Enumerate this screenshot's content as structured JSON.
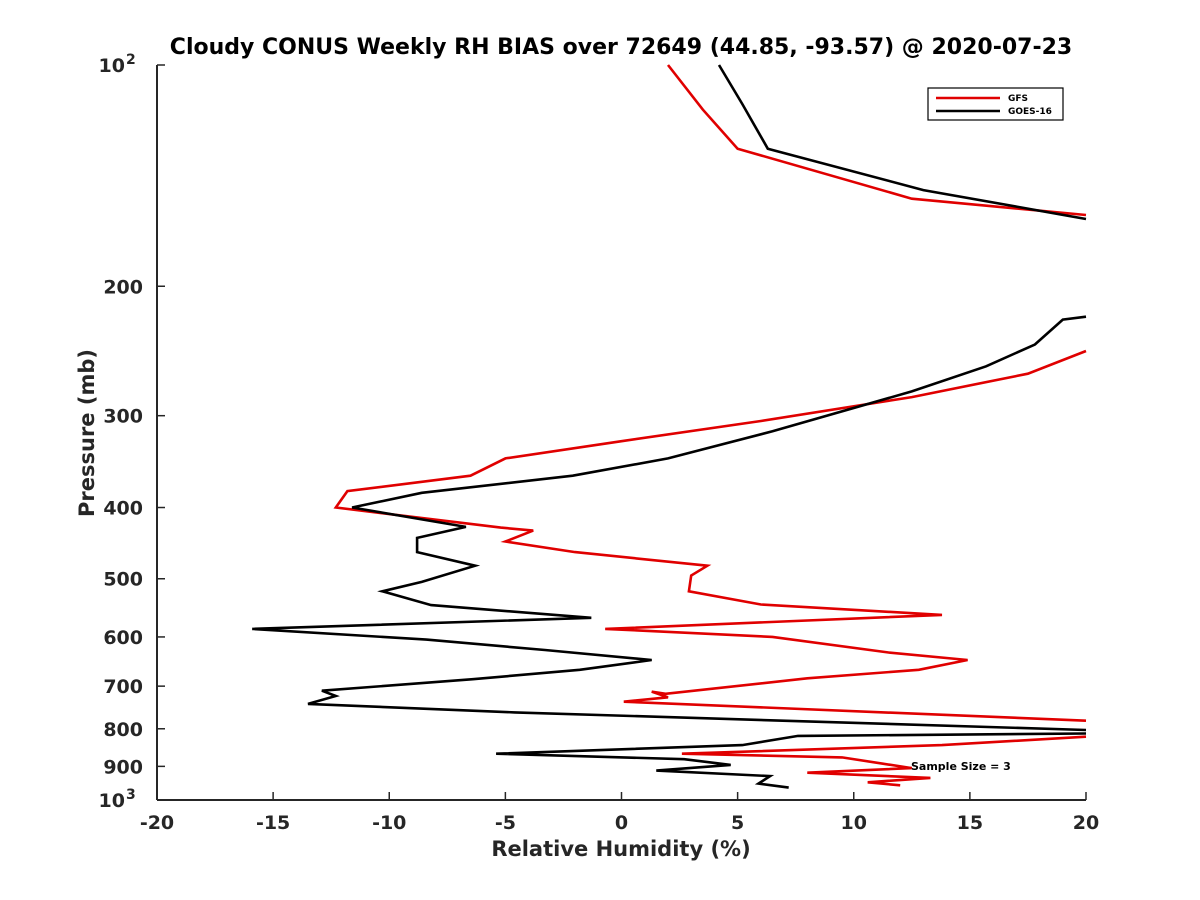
{
  "chart_data": {
    "type": "line",
    "title": "Cloudy CONUS Weekly RH BIAS over 72649 (44.85, -93.57) @ 2020-07-23",
    "xlabel": "Relative Humidity (%)",
    "ylabel": "Pressure (mb)",
    "xlim": [
      -20,
      20
    ],
    "ylim": [
      100,
      1000
    ],
    "y_scale": "log",
    "y_reversed": true,
    "grid": false,
    "legend_position": "top-right",
    "x_ticks": [
      "-20",
      "-15",
      "-10",
      "-5",
      "0",
      "5",
      "10",
      "15",
      "20"
    ],
    "y_ticks": [
      {
        "value": 100,
        "base": "10",
        "exp": "2"
      },
      {
        "value": 200,
        "label": "200"
      },
      {
        "value": 300,
        "label": "300"
      },
      {
        "value": 400,
        "label": "400"
      },
      {
        "value": 500,
        "label": "500"
      },
      {
        "value": 600,
        "label": "600"
      },
      {
        "value": 700,
        "label": "700"
      },
      {
        "value": 800,
        "label": "800"
      },
      {
        "value": 900,
        "label": "900"
      },
      {
        "value": 1000,
        "base": "10",
        "exp": "3"
      }
    ],
    "annotation": "Sample Size = 3",
    "series": [
      {
        "name": "GFS",
        "color": "#e00000",
        "segments": [
          [
            [
              2.0,
              100
            ],
            [
              3.5,
              115
            ],
            [
              5.0,
              130
            ],
            [
              12.5,
              152
            ],
            [
              20.0,
              160
            ]
          ],
          [
            [
              20.0,
              245
            ],
            [
              17.5,
              263
            ],
            [
              12.5,
              283
            ],
            [
              6.0,
              305
            ],
            [
              0.0,
              325
            ],
            [
              -5.0,
              343
            ],
            [
              -6.5,
              362
            ],
            [
              -11.8,
              380
            ],
            [
              -12.3,
              400
            ],
            [
              -5.2,
              426
            ],
            [
              -3.8,
              430
            ],
            [
              -5.0,
              445
            ],
            [
              -2.0,
              460
            ],
            [
              3.7,
              480
            ],
            [
              3.0,
              495
            ],
            [
              2.9,
              520
            ],
            [
              6.0,
              542
            ],
            [
              13.8,
              560
            ],
            [
              -0.7,
              585
            ],
            [
              6.5,
              600
            ],
            [
              11.5,
              630
            ],
            [
              14.9,
              645
            ],
            [
              12.8,
              665
            ],
            [
              8.0,
              683
            ],
            [
              1.9,
              717
            ],
            [
              1.3,
              712
            ],
            [
              2.0,
              725
            ],
            [
              0.1,
              735
            ],
            [
              20.0,
              780
            ]
          ],
          [
            [
              20.0,
              820
            ],
            [
              13.8,
              842
            ],
            [
              2.6,
              865
            ],
            [
              9.5,
              875
            ],
            [
              12.5,
              905
            ],
            [
              8.0,
              918
            ],
            [
              13.3,
              933
            ],
            [
              10.6,
              946
            ],
            [
              12.0,
              955
            ]
          ]
        ]
      },
      {
        "name": "GOES-16",
        "color": "#000000",
        "segments": [
          [
            [
              4.2,
              100
            ],
            [
              5.2,
              113
            ],
            [
              6.3,
              130
            ],
            [
              13.0,
              148
            ],
            [
              20.0,
              162
            ]
          ],
          [
            [
              20.0,
              220
            ],
            [
              19.0,
              222
            ],
            [
              17.8,
              240
            ],
            [
              15.7,
              257
            ],
            [
              12.5,
              278
            ],
            [
              6.5,
              315
            ],
            [
              2.0,
              343
            ],
            [
              -2.1,
              362
            ],
            [
              -8.6,
              382
            ],
            [
              -11.6,
              400
            ],
            [
              -6.7,
              425
            ],
            [
              -8.8,
              440
            ],
            [
              -8.8,
              460
            ],
            [
              -6.3,
              480
            ],
            [
              -8.6,
              505
            ],
            [
              -10.3,
              520
            ],
            [
              -8.2,
              543
            ],
            [
              -1.3,
              565
            ],
            [
              -15.9,
              585
            ],
            [
              -8.4,
              605
            ],
            [
              -3.3,
              625
            ],
            [
              1.3,
              645
            ],
            [
              -1.8,
              665
            ],
            [
              -6.4,
              685
            ],
            [
              -12.9,
              710
            ],
            [
              -12.3,
              722
            ],
            [
              -13.5,
              740
            ],
            [
              -4.6,
              760
            ],
            [
              20.0,
              803
            ]
          ],
          [
            [
              20.0,
              812
            ],
            [
              7.6,
              818
            ],
            [
              5.2,
              842
            ],
            [
              -5.4,
              865
            ],
            [
              2.7,
              880
            ],
            [
              4.7,
              896
            ],
            [
              1.5,
              912
            ],
            [
              6.4,
              928
            ],
            [
              5.9,
              950
            ],
            [
              7.2,
              962
            ]
          ]
        ]
      }
    ]
  }
}
